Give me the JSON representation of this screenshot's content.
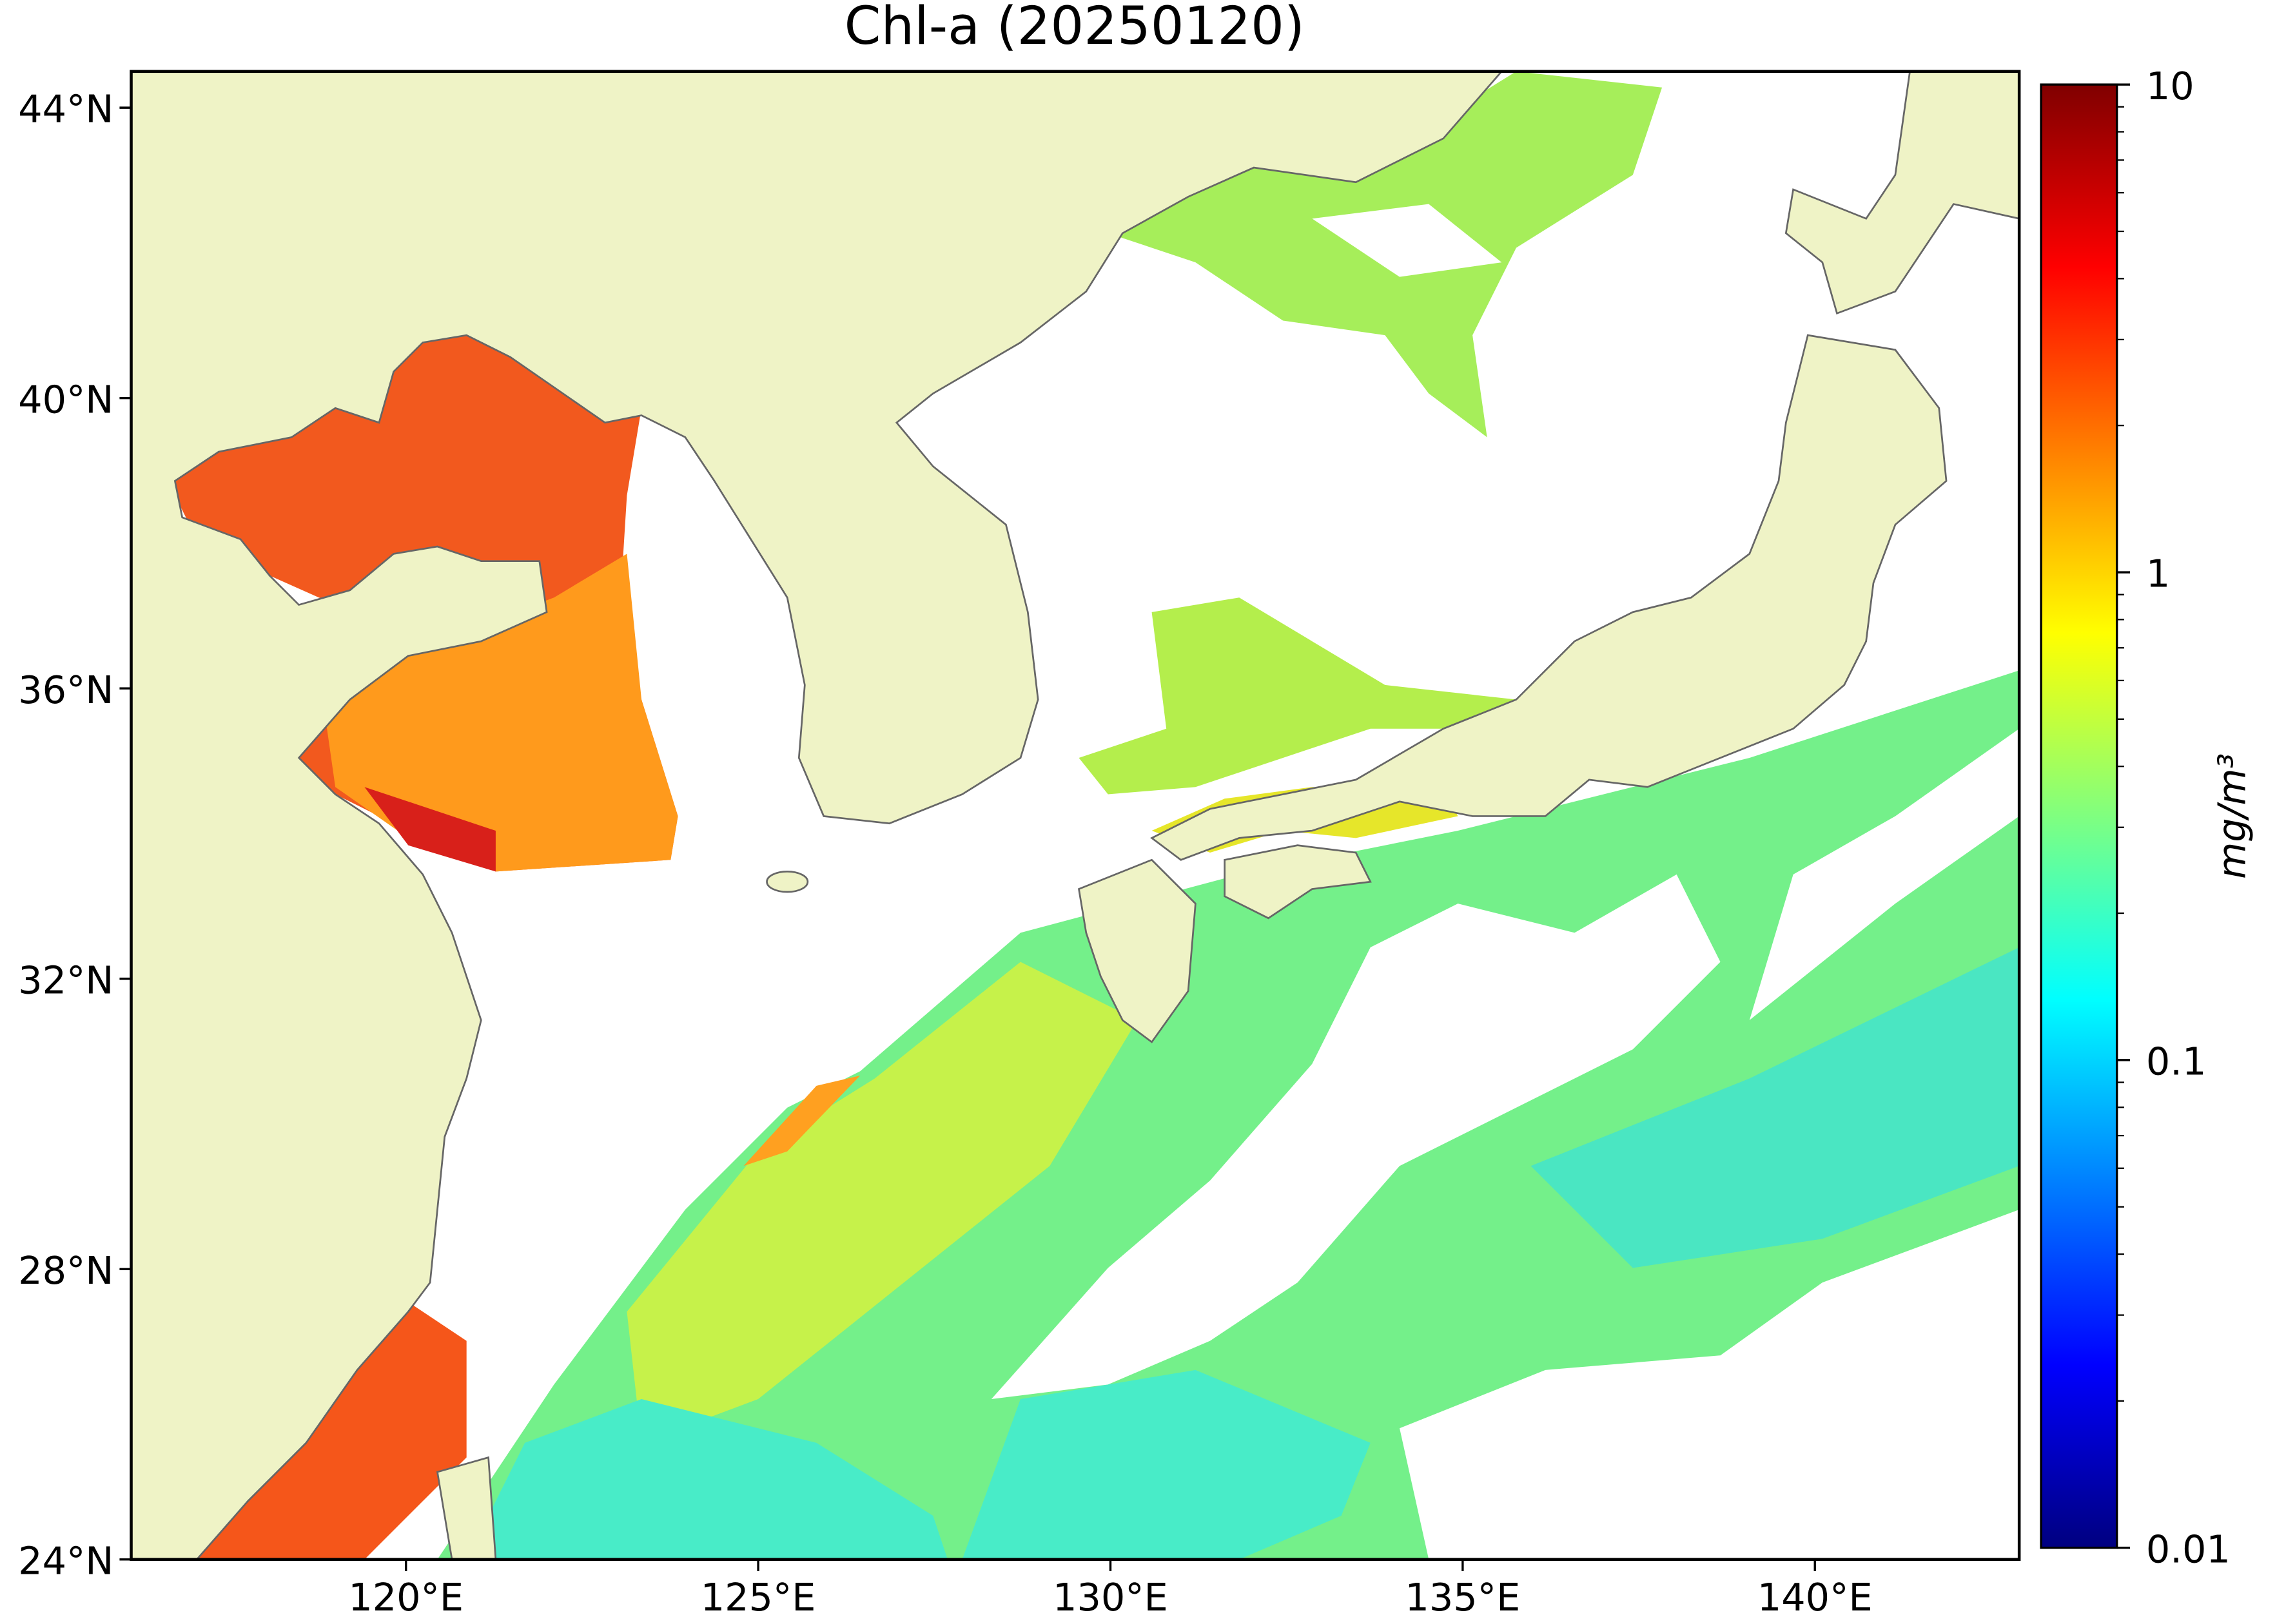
{
  "title": "Chl-a (20250120)",
  "map": {
    "xlim": [
      116.1,
      142.9
    ],
    "ylim": [
      24,
      44.5
    ],
    "xticks": [
      {
        "value": 120,
        "label": "120°E"
      },
      {
        "value": 125,
        "label": "125°E"
      },
      {
        "value": 130,
        "label": "130°E"
      },
      {
        "value": 135,
        "label": "135°E"
      },
      {
        "value": 140,
        "label": "140°E"
      }
    ],
    "yticks": [
      {
        "value": 24,
        "label": "24°N"
      },
      {
        "value": 28,
        "label": "28°N"
      },
      {
        "value": 32,
        "label": "32°N"
      },
      {
        "value": 36,
        "label": "36°N"
      },
      {
        "value": 40,
        "label": "40°N"
      },
      {
        "value": 44,
        "label": "44°N"
      }
    ]
  },
  "colorbar": {
    "label": "mg/m³",
    "scale": "log",
    "colormap": "jet",
    "lim": [
      0.01,
      10
    ],
    "ticks": [
      0.01,
      0.1,
      1,
      10
    ],
    "minor_ticks": [
      0.02,
      0.03,
      0.04,
      0.05,
      0.06,
      0.07,
      0.08,
      0.09,
      0.2,
      0.3,
      0.4,
      0.5,
      0.6,
      0.7,
      0.8,
      0.9,
      2,
      3,
      4,
      5,
      6,
      7,
      8,
      9
    ]
  }
}
